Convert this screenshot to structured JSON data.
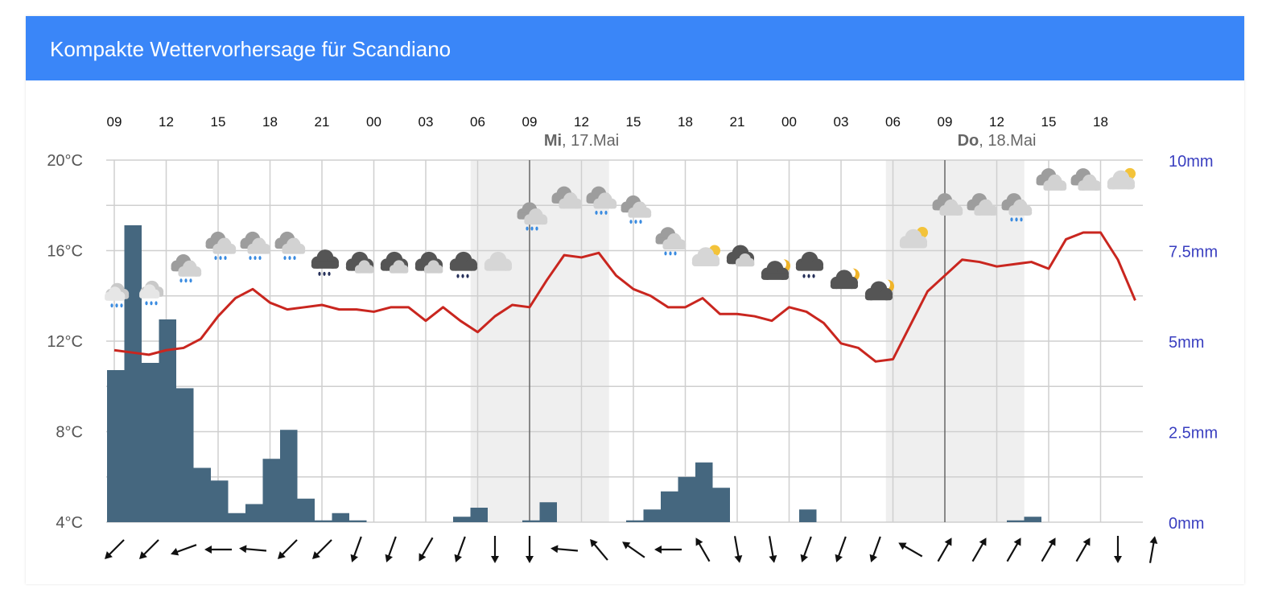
{
  "header": {
    "title": "Kompakte Wettervorhersage für Scandiano"
  },
  "colors": {
    "header_bg": "#3a86f8",
    "temperature_line": "#c9261f",
    "precipitation_bar": "#45677f",
    "night_shade": "#efefef",
    "precip_axis": "#3a3fc0"
  },
  "chart_data": {
    "type": "bar",
    "title": "",
    "x": [
      "09",
      "10",
      "11",
      "12",
      "13",
      "14",
      "15",
      "16",
      "17",
      "18",
      "19",
      "20",
      "21",
      "22",
      "23",
      "00",
      "01",
      "02",
      "03",
      "04",
      "05",
      "06",
      "07",
      "08",
      "09",
      "10",
      "11",
      "12",
      "13",
      "14",
      "15",
      "16",
      "17",
      "18",
      "19",
      "20",
      "21",
      "22",
      "23",
      "00",
      "01",
      "02",
      "03",
      "04",
      "05",
      "06",
      "07",
      "08",
      "09",
      "10",
      "11",
      "12",
      "13",
      "14",
      "15",
      "16",
      "17",
      "18",
      "19",
      "20"
    ],
    "x_tick_labels": [
      "09",
      "12",
      "15",
      "18",
      "21",
      "00",
      "03",
      "06",
      "09",
      "12",
      "15",
      "18",
      "21",
      "00",
      "03",
      "06",
      "09",
      "12",
      "15",
      "18"
    ],
    "day_labels": [
      {
        "prefix": "Mi",
        "rest": ", 17.Mai"
      },
      {
        "prefix": "Do",
        "rest": ", 18.Mai"
      }
    ],
    "y_left": {
      "label": "",
      "ticks": [
        "20°C",
        "16°C",
        "12°C",
        "8°C",
        "4°C"
      ],
      "ylim": [
        4,
        20
      ],
      "unit": "°C"
    },
    "y_right": {
      "label": "",
      "ticks": [
        "10mm",
        "7.5mm",
        "5mm",
        "2.5mm",
        "0mm"
      ],
      "ylim": [
        0,
        10
      ],
      "unit": "mm"
    },
    "series": [
      {
        "type": "bar",
        "axis": "right",
        "values": [
          4.2,
          8.2,
          4.4,
          5.6,
          3.7,
          1.5,
          1.15,
          0.25,
          0.5,
          1.75,
          2.55,
          0.65,
          0.05,
          0.25,
          0.05,
          0,
          0,
          0,
          0,
          0,
          0.15,
          0.4,
          0,
          0,
          0.05,
          0.55,
          0,
          0,
          0,
          0,
          0.05,
          0.35,
          0.85,
          1.25,
          1.65,
          0.95,
          0,
          0,
          0,
          0,
          0.35,
          0,
          0,
          0,
          0,
          0,
          0,
          0,
          0,
          0,
          0,
          0,
          0.05,
          0.15,
          0,
          0,
          0,
          0,
          0,
          0
        ]
      },
      {
        "type": "line",
        "axis": "left",
        "values": [
          11.6,
          11.5,
          11.4,
          11.6,
          11.7,
          12.1,
          13.1,
          13.9,
          14.3,
          13.7,
          13.4,
          13.5,
          13.6,
          13.4,
          13.4,
          13.3,
          13.5,
          13.5,
          12.9,
          13.5,
          12.9,
          12.4,
          13.1,
          13.6,
          13.5,
          14.7,
          15.8,
          15.7,
          15.9,
          14.9,
          14.3,
          14.0,
          13.5,
          13.5,
          13.9,
          13.2,
          13.2,
          13.1,
          12.9,
          13.5,
          13.3,
          12.8,
          11.9,
          11.7,
          11.1,
          11.2,
          12.7,
          14.2,
          14.9,
          15.6,
          15.5,
          15.3,
          15.4,
          15.5,
          15.2,
          16.5,
          16.8,
          16.8,
          15.6,
          13.8
        ]
      }
    ],
    "night_shading": [
      [
        21,
        29
      ],
      [
        45,
        53
      ]
    ],
    "day_dividers": [
      24,
      48
    ],
    "weather_icons": [
      {
        "x": 0,
        "t": 14.5,
        "icon": "rain-cloud-light"
      },
      {
        "x": 2,
        "t": 14.6,
        "icon": "rain-cloud-light"
      },
      {
        "x": 4,
        "t": 15.6,
        "icon": "rain-cloud"
      },
      {
        "x": 6,
        "t": 16.6,
        "icon": "rain-cloud"
      },
      {
        "x": 8,
        "t": 16.6,
        "icon": "rain-cloud"
      },
      {
        "x": 10,
        "t": 16.6,
        "icon": "rain-cloud"
      },
      {
        "x": 12,
        "t": 15.9,
        "icon": "dark-rain-cloud"
      },
      {
        "x": 14,
        "t": 15.8,
        "icon": "dark-cloud"
      },
      {
        "x": 16,
        "t": 15.8,
        "icon": "dark-cloud"
      },
      {
        "x": 18,
        "t": 15.8,
        "icon": "dark-cloud"
      },
      {
        "x": 20,
        "t": 15.8,
        "icon": "dark-rain-cloud"
      },
      {
        "x": 22,
        "t": 15.8,
        "icon": "light-cloud"
      },
      {
        "x": 24,
        "t": 17.9,
        "icon": "rain-cloud"
      },
      {
        "x": 26,
        "t": 18.6,
        "icon": "cloud"
      },
      {
        "x": 28,
        "t": 18.6,
        "icon": "rain-cloud"
      },
      {
        "x": 30,
        "t": 18.2,
        "icon": "rain-cloud"
      },
      {
        "x": 32,
        "t": 16.8,
        "icon": "rain-cloud"
      },
      {
        "x": 34,
        "t": 16.0,
        "icon": "light-cloud-sun"
      },
      {
        "x": 36,
        "t": 16.1,
        "icon": "dark-cloud"
      },
      {
        "x": 38,
        "t": 15.4,
        "icon": "dark-cloud-moon"
      },
      {
        "x": 40,
        "t": 15.8,
        "icon": "dark-rain-cloud"
      },
      {
        "x": 42,
        "t": 15.0,
        "icon": "dark-cloud-moon"
      },
      {
        "x": 44,
        "t": 14.5,
        "icon": "dark-cloud-moon"
      },
      {
        "x": 46,
        "t": 16.8,
        "icon": "light-cloud-sun"
      },
      {
        "x": 48,
        "t": 18.3,
        "icon": "cloud"
      },
      {
        "x": 50,
        "t": 18.3,
        "icon": "cloud"
      },
      {
        "x": 52,
        "t": 18.3,
        "icon": "rain-cloud"
      },
      {
        "x": 54,
        "t": 19.4,
        "icon": "cloud"
      },
      {
        "x": 56,
        "t": 19.4,
        "icon": "cloud"
      },
      {
        "x": 58,
        "t": 19.4,
        "icon": "light-cloud-sun"
      }
    ],
    "wind_directions_deg": [
      135,
      135,
      160,
      180,
      185,
      135,
      135,
      110,
      110,
      120,
      110,
      90,
      90,
      185,
      230,
      215,
      180,
      240,
      80,
      80,
      110,
      110,
      110,
      210,
      300,
      300,
      300,
      300,
      300,
      90,
      280
    ],
    "legend": "none",
    "grid": true
  }
}
